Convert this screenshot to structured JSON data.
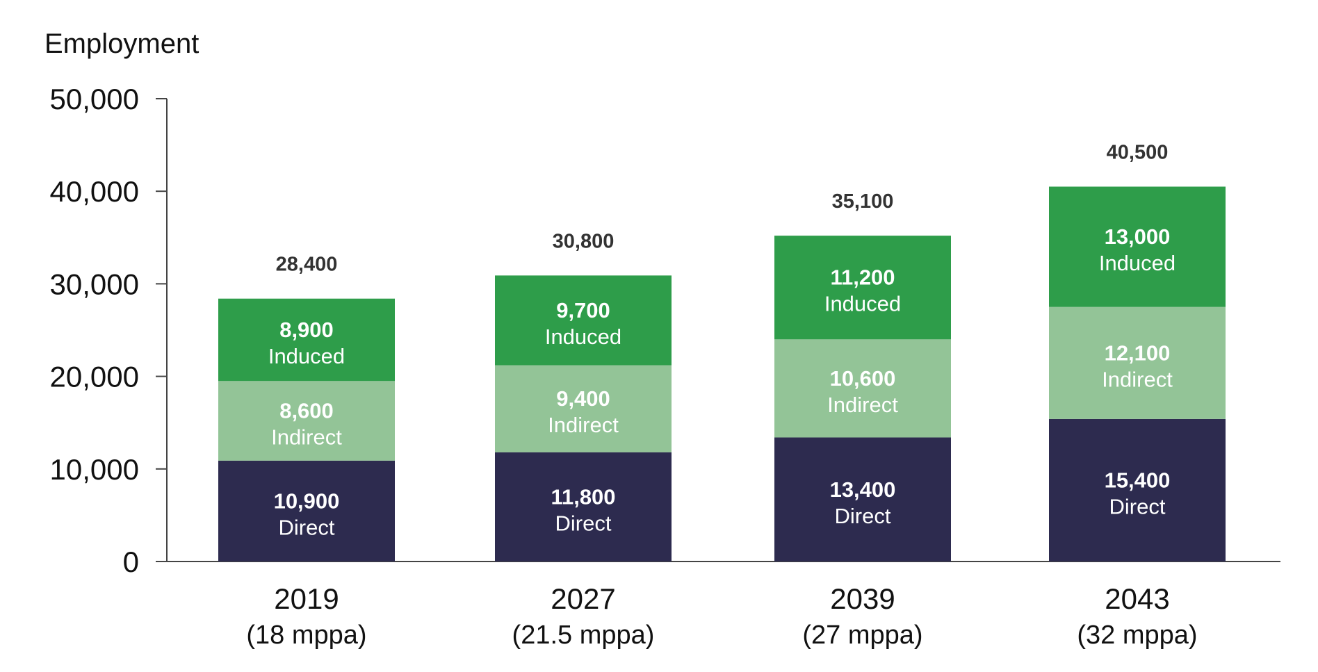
{
  "chart_data": {
    "type": "bar",
    "stacked": true,
    "ylabel": "Employment",
    "ylim": [
      0,
      50000
    ],
    "yticks": [
      0,
      10000,
      20000,
      30000,
      40000,
      50000
    ],
    "ytick_labels": [
      "0",
      "10,000",
      "20,000",
      "30,000",
      "40,000",
      "50,000"
    ],
    "categories": [
      "2019",
      "2027",
      "2039",
      "2043"
    ],
    "category_sublabels": [
      "(18 mppa)",
      "(21.5 mppa)",
      "(27 mppa)",
      "(32 mppa)"
    ],
    "series": [
      {
        "name": "Direct",
        "color": "#2d2b4f",
        "values": [
          10900,
          11800,
          13400,
          15400
        ],
        "value_labels": [
          "10,900",
          "11,800",
          "13,400",
          "15,400"
        ]
      },
      {
        "name": "Indirect",
        "color": "#93c497",
        "values": [
          8600,
          9400,
          10600,
          12100
        ],
        "value_labels": [
          "8,600",
          "9,400",
          "10,600",
          "12,100"
        ]
      },
      {
        "name": "Induced",
        "color": "#2e9d4a",
        "values": [
          8900,
          9700,
          11200,
          13000
        ],
        "value_labels": [
          "8,900",
          "9,700",
          "11,200",
          "13,000"
        ]
      }
    ],
    "totals": [
      28400,
      30800,
      35100,
      40500
    ],
    "total_labels": [
      "28,400",
      "30,800",
      "35,100",
      "40,500"
    ],
    "grid": false,
    "legend": "none"
  }
}
